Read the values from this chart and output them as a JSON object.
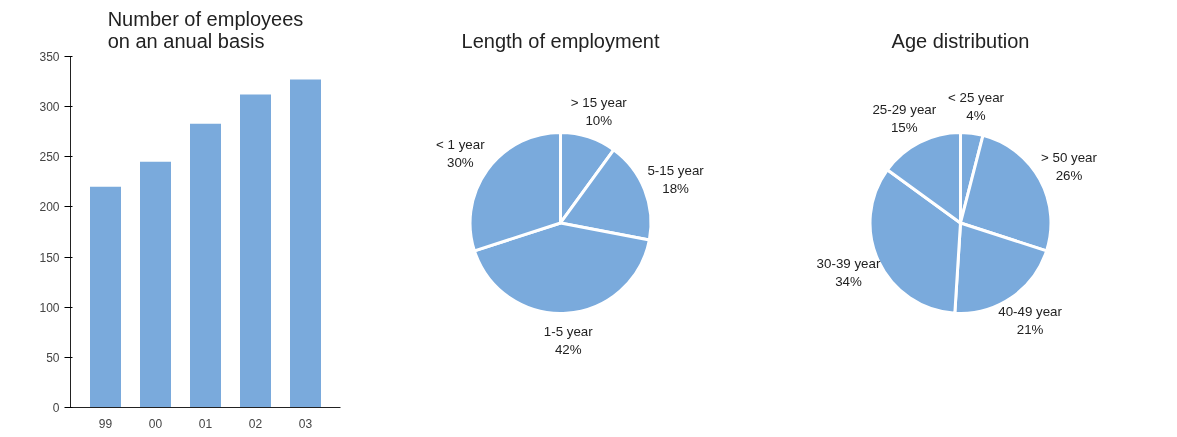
{
  "chart_data": [
    {
      "type": "bar",
      "title": "Number of employees on an anual basis",
      "categories": [
        "99",
        "00",
        "01",
        "02",
        "03"
      ],
      "values": [
        220,
        245,
        283,
        312,
        327
      ],
      "color": "#7aaadc",
      "ylim": [
        0,
        350
      ],
      "yticks": [
        0,
        50,
        100,
        150,
        200,
        250,
        300,
        350
      ],
      "grid": false,
      "legend": false
    },
    {
      "type": "pie",
      "title": "Length of employment",
      "categories": [
        "> 15 year",
        "5-15 year",
        "1-5 year",
        "< 1 year"
      ],
      "values": [
        10,
        18,
        42,
        30
      ],
      "value_labels": [
        "10%",
        "18%",
        "42%",
        "30%"
      ],
      "colors": [
        "#7aaadc",
        "#7aaadc",
        "#7aaadc",
        "#7aaadc"
      ],
      "legend": false
    },
    {
      "type": "pie",
      "title": "Age distribution",
      "categories": [
        "< 25 year",
        "> 50 year",
        "40-49 year",
        "30-39 year",
        "25-29 year"
      ],
      "values": [
        4,
        26,
        21,
        34,
        15
      ],
      "value_labels": [
        "4%",
        "26%",
        "21%",
        "34%",
        "15%"
      ],
      "colors": [
        "#7aaadc",
        "#7aaadc",
        "#7aaadc",
        "#7aaadc",
        "#7aaadc"
      ],
      "legend": false
    }
  ]
}
